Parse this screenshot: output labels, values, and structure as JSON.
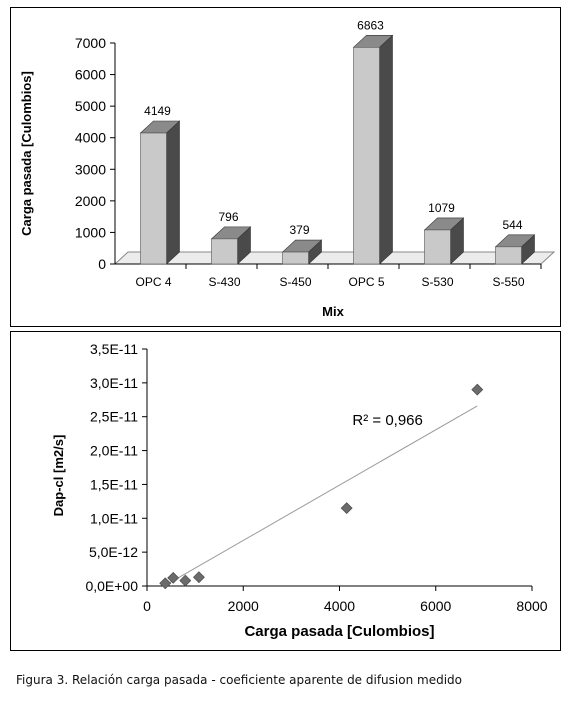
{
  "chart_data": [
    {
      "type": "bar",
      "categories": [
        "OPC 4",
        "S-430",
        "S-450",
        "OPC 5",
        "S-530",
        "S-550"
      ],
      "values": [
        4149,
        796,
        379,
        6863,
        1079,
        544
      ],
      "data_labels": [
        "4149",
        "796",
        "379",
        "6863",
        "1079",
        "544"
      ],
      "xlabel": "Mix",
      "ylabel": "Carga pasada [Culombios]",
      "ylim": [
        0,
        7000
      ],
      "yticks": [
        0,
        1000,
        2000,
        3000,
        4000,
        5000,
        6000,
        7000
      ],
      "ytick_labels": [
        "0",
        "1000",
        "2000",
        "3000",
        "4000",
        "5000",
        "6000",
        "7000"
      ],
      "style": "3d",
      "grid": false,
      "colors": {
        "bar_front": "#c9c9c9",
        "bar_side": "#4a4a4a",
        "bar_top": "#8a8a8a"
      }
    },
    {
      "type": "scatter",
      "x": [
        379,
        544,
        796,
        1079,
        4149,
        6863
      ],
      "y": [
        4e-13,
        1.2e-12,
        8e-13,
        1.3e-12,
        1.15e-11,
        2.9e-11
      ],
      "trendline": {
        "type": "linear",
        "x_range": [
          379,
          6863
        ],
        "y_range": [
          1e-13,
          2.66e-11
        ]
      },
      "annotation": "R² = 0,966",
      "xlabel": "Carga pasada [Culombios]",
      "ylabel": "Dap-cl [m2/s]",
      "xlim": [
        0,
        8000
      ],
      "ylim": [
        0,
        3.5e-11
      ],
      "xticks": [
        0,
        2000,
        4000,
        6000,
        8000
      ],
      "xtick_labels": [
        "0",
        "2000",
        "4000",
        "6000",
        "8000"
      ],
      "yticks": [
        0,
        5e-12,
        1e-11,
        1.5e-11,
        2e-11,
        2.5e-11,
        3e-11,
        3.5e-11
      ],
      "ytick_labels": [
        "0,0E+00",
        "5,0E-12",
        "1,0E-11",
        "1,5E-11",
        "2,0E-11",
        "2,5E-11",
        "3,0E-11",
        "3,5E-11"
      ],
      "grid": false,
      "colors": {
        "marker": "#6b6b6b",
        "trendline": "#9a9a9a"
      }
    }
  ],
  "caption": "Figura 3. Relación carga pasada - coeficiente aparente de difusion medido"
}
